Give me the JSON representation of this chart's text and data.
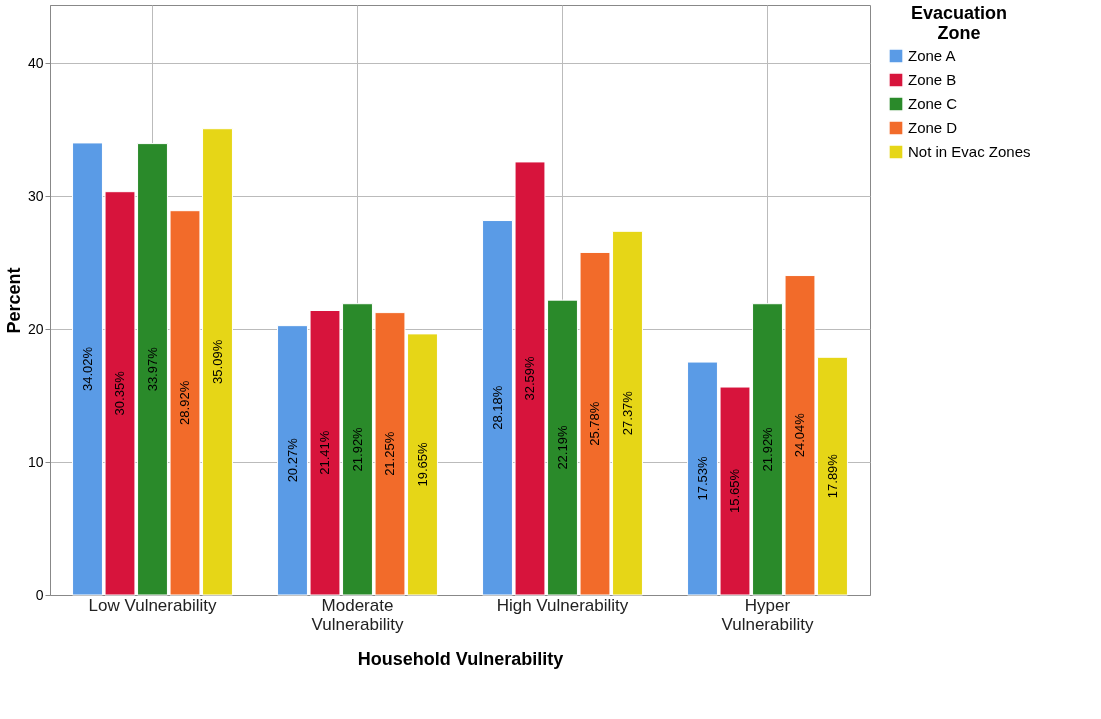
{
  "chart_data": {
    "type": "bar",
    "xlabel": "Household Vulnerability",
    "ylabel": "Percent",
    "legend_title": "Evacuation Zone",
    "categories": [
      "Low Vulnerability",
      "Moderate Vulnerability",
      "High Vulnerability",
      "Hyper Vulnerability"
    ],
    "series": [
      {
        "name": "Zone A",
        "color": "#5a9be6",
        "values": [
          34.02,
          20.27,
          28.18,
          17.53
        ],
        "value_labels": [
          "34.02%",
          "20.27%",
          "28.18%",
          "17.53%"
        ]
      },
      {
        "name": "Zone B",
        "color": "#d7143c",
        "values": [
          30.35,
          21.41,
          32.59,
          15.65
        ],
        "value_labels": [
          "30.35%",
          "21.41%",
          "32.59%",
          "15.65%"
        ]
      },
      {
        "name": "Zone C",
        "color": "#2a8a2a",
        "values": [
          33.97,
          21.92,
          22.19,
          21.92
        ],
        "value_labels": [
          "33.97%",
          "21.92%",
          "22.19%",
          "21.92%"
        ]
      },
      {
        "name": "Zone D",
        "color": "#f26b2a",
        "values": [
          28.92,
          21.25,
          25.78,
          24.04
        ],
        "value_labels": [
          "28.92%",
          "21.25%",
          "25.78%",
          "24.04%"
        ]
      },
      {
        "name": "Not in Evac Zones",
        "color": "#e6d617",
        "values": [
          35.09,
          19.65,
          27.37,
          17.89
        ],
        "value_labels": [
          "35.09%",
          "19.65%",
          "27.37%",
          "17.89%"
        ]
      }
    ],
    "ylim": [
      0,
      44.4
    ],
    "yticks": [
      0,
      10,
      20,
      30,
      40
    ],
    "grid": true,
    "legend": "top right"
  }
}
